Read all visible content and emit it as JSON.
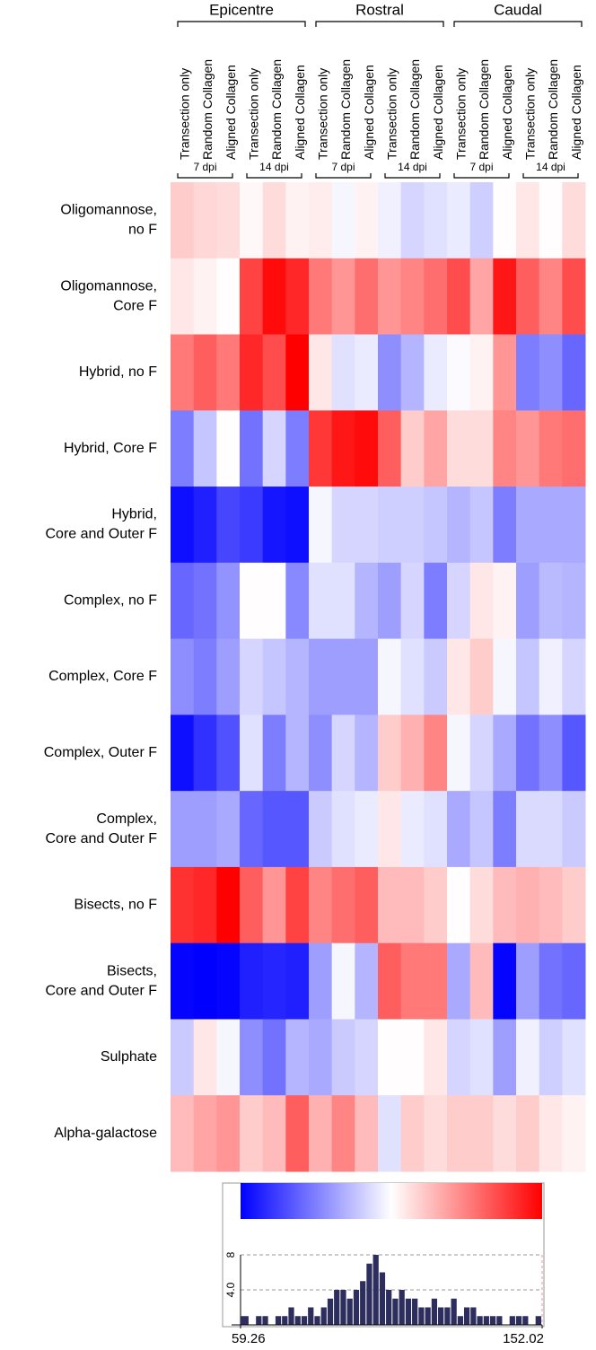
{
  "chart_data": [
    {
      "type": "heatmap",
      "column_groups": [
        {
          "name": "Epicentre",
          "subgroups": [
            {
              "name": "7 dpi",
              "columns": [
                "Transection only",
                "Random Collagen",
                "Aligned Collagen"
              ]
            },
            {
              "name": "14 dpi",
              "columns": [
                "Transection only",
                "Random Collagen",
                "Aligned Collagen"
              ]
            }
          ]
        },
        {
          "name": "Rostral",
          "subgroups": [
            {
              "name": "7 dpi",
              "columns": [
                "Transection only",
                "Random Collagen",
                "Aligned Collagen"
              ]
            },
            {
              "name": "14 dpi",
              "columns": [
                "Transection only",
                "Random Collagen",
                "Aligned Collagen"
              ]
            }
          ]
        },
        {
          "name": "Caudal",
          "subgroups": [
            {
              "name": "7 dpi",
              "columns": [
                "Transection only",
                "Random Collagen",
                "Aligned Collagen"
              ]
            },
            {
              "name": "14 dpi",
              "columns": [
                "Transection only",
                "Random Collagen",
                "Aligned Collagen"
              ]
            }
          ]
        }
      ],
      "rows": [
        [
          "Oligomannose,",
          "no F"
        ],
        [
          "Oligomannose,",
          "Core F"
        ],
        [
          "Hybrid, no F"
        ],
        [
          "Hybrid, Core F"
        ],
        [
          "Hybrid,",
          "Core and Outer F"
        ],
        [
          "Complex, no F"
        ],
        [
          "Complex, Core F"
        ],
        [
          "Complex, Outer F"
        ],
        [
          "Complex,",
          "Core and Outer F"
        ],
        [
          "Bisects, no F"
        ],
        [
          "Bisects,",
          "Core and Outer F"
        ],
        [
          "Sulphate"
        ],
        [
          "Alpha-galactose"
        ]
      ],
      "values": [
        [
          115,
          113,
          112,
          107,
          112,
          108,
          109,
          104,
          108,
          103,
          98,
          100,
          102,
          97,
          106,
          110,
          106,
          112
        ],
        [
          110,
          108,
          106,
          140,
          150,
          145,
          130,
          125,
          132,
          125,
          128,
          132,
          138,
          122,
          148,
          135,
          128,
          138
        ],
        [
          130,
          135,
          130,
          145,
          138,
          152,
          110,
          100,
          102,
          85,
          92,
          102,
          105,
          108,
          125,
          82,
          85,
          78
        ],
        [
          82,
          95,
          106,
          80,
          98,
          82,
          142,
          148,
          150,
          135,
          115,
          122,
          112,
          112,
          128,
          125,
          130,
          132
        ],
        [
          62,
          65,
          72,
          70,
          63,
          62,
          104,
          98,
          98,
          97,
          97,
          95,
          92,
          95,
          82,
          90,
          90,
          90
        ],
        [
          78,
          80,
          86,
          106,
          106,
          84,
          100,
          100,
          92,
          88,
          98,
          82,
          98,
          110,
          108,
          88,
          93,
          92
        ],
        [
          85,
          82,
          88,
          98,
          95,
          92,
          88,
          88,
          88,
          104,
          100,
          96,
          110,
          115,
          104,
          95,
          103,
          98
        ],
        [
          62,
          68,
          74,
          100,
          82,
          92,
          85,
          98,
          92,
          115,
          120,
          128,
          104,
          98,
          90,
          80,
          85,
          75
        ],
        [
          88,
          88,
          90,
          78,
          75,
          75,
          96,
          100,
          102,
          110,
          102,
          100,
          90,
          95,
          82,
          99,
          99,
          96
        ],
        [
          143,
          145,
          152,
          135,
          125,
          140,
          128,
          132,
          135,
          118,
          118,
          115,
          106,
          112,
          118,
          120,
          118,
          115
        ],
        [
          60,
          59.26,
          60,
          65,
          66,
          65,
          88,
          104,
          92,
          135,
          130,
          130,
          90,
          118,
          60,
          88,
          80,
          78
        ],
        [
          96,
          110,
          104,
          85,
          80,
          92,
          90,
          96,
          98,
          106,
          106,
          110,
          98,
          100,
          88,
          103,
          97,
          100
        ],
        [
          118,
          122,
          125,
          115,
          118,
          135,
          120,
          128,
          118,
          100,
          115,
          112,
          115,
          115,
          112,
          115,
          110,
          108
        ]
      ],
      "colors": [
        "#0000ff",
        "#ffffff",
        "#ff0000"
      ],
      "zlim": [
        59.26,
        152.02
      ]
    },
    {
      "type": "histogram",
      "bins": [
        59.26,
        62,
        64,
        66,
        68,
        70,
        72,
        74,
        76,
        78,
        80,
        82,
        84,
        86,
        88,
        90,
        92,
        94,
        96,
        98,
        100,
        102,
        104,
        106,
        108,
        110,
        112,
        114,
        116,
        118,
        120,
        122,
        124,
        126,
        128,
        130,
        132,
        134,
        136,
        138,
        140,
        142,
        144,
        146,
        148,
        150,
        152.02
      ],
      "counts": [
        1,
        0,
        1,
        1,
        0,
        1,
        1,
        2,
        1,
        1,
        2,
        1,
        2,
        3,
        4,
        4,
        3,
        4,
        5,
        7,
        8,
        6,
        4,
        3,
        4,
        3,
        3,
        2,
        2,
        3,
        2,
        2,
        3,
        1,
        2,
        2,
        1,
        1,
        1,
        1,
        0,
        1,
        1,
        1,
        0,
        1
      ],
      "color": "#2e2e5e",
      "xlim": [
        59.26,
        152.02
      ],
      "xticks": [
        59.26,
        152.02
      ],
      "ylim": [
        0,
        8
      ],
      "yticks": [
        {
          "value": 4,
          "label": "4.0"
        },
        8
      ],
      "grid": true
    }
  ]
}
